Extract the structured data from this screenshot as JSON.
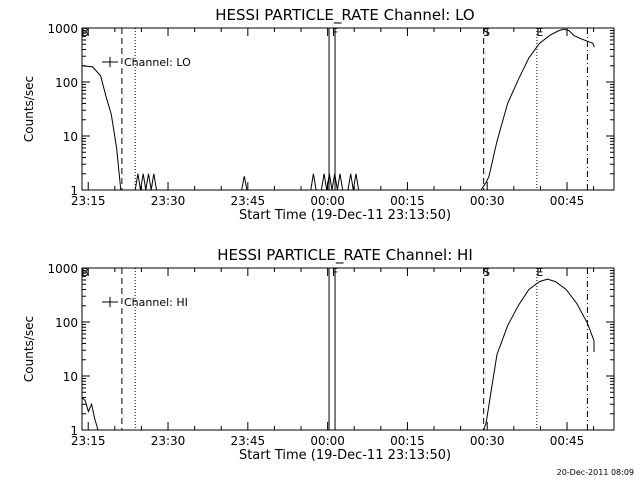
{
  "footer": {
    "timestamp": "20-Dec-2011 08:09"
  },
  "chart_data": [
    {
      "type": "line",
      "title": "HESSI PARTICLE_RATE Channel: LO",
      "xlabel": "Start Time (19-Dec-11 23:13:50)",
      "ylabel": "Counts/sec",
      "yscale": "log",
      "ylim": [
        1,
        1000
      ],
      "xlim_minutes": [
        0,
        96
      ],
      "xtick_labels": [
        "23:15",
        "23:30",
        "23:45",
        "00:00",
        "00:15",
        "00:30",
        "00:45"
      ],
      "xtick_minutes": [
        1.17,
        16.17,
        31.17,
        46.17,
        61.17,
        76.17,
        91.17
      ],
      "ytick_labels": [
        "1",
        "10",
        "100",
        "1000"
      ],
      "ytick_values": [
        1,
        10,
        100,
        1000
      ],
      "legend": {
        "label": "Channel: LO",
        "placement": "top-left"
      },
      "series": [
        {
          "name": "Channel: LO",
          "points": [
            [
              0,
              200
            ],
            [
              2,
              190
            ],
            [
              3.5,
              130
            ],
            [
              4.5,
              55
            ],
            [
              5.5,
              25
            ],
            [
              6.5,
              6
            ],
            [
              7.3,
              1
            ],
            [
              10,
              1
            ],
            [
              10.5,
              2
            ],
            [
              11,
              1
            ],
            [
              11.5,
              2
            ],
            [
              12,
              1
            ],
            [
              12.5,
              2
            ],
            [
              13,
              1
            ],
            [
              13.5,
              2
            ],
            [
              14,
              1
            ],
            [
              30,
              1
            ],
            [
              30.5,
              1.8
            ],
            [
              31,
              1
            ],
            [
              43,
              1
            ],
            [
              43.5,
              2
            ],
            [
              44,
              1
            ],
            [
              45,
              1
            ],
            [
              45.5,
              2
            ],
            [
              46,
              1
            ],
            [
              46.5,
              2
            ],
            [
              47,
              1
            ],
            [
              47.5,
              2
            ],
            [
              48,
              1
            ],
            [
              48.5,
              2
            ],
            [
              49,
              1
            ],
            [
              50,
              1
            ],
            [
              50.5,
              2
            ],
            [
              51,
              1
            ],
            [
              51.5,
              2
            ],
            [
              52,
              1
            ],
            [
              75,
              1
            ],
            [
              76,
              1.4
            ],
            [
              76.5,
              1.8
            ],
            [
              78,
              8
            ],
            [
              80,
              40
            ],
            [
              82,
              110
            ],
            [
              84,
              280
            ],
            [
              86,
              520
            ],
            [
              88,
              740
            ],
            [
              89.5,
              880
            ],
            [
              90.5,
              950
            ],
            [
              91.5,
              900
            ],
            [
              92.5,
              720
            ],
            [
              94,
              620
            ],
            [
              96,
              520
            ],
            [
              98,
              470
            ],
            [
              99.5,
              440
            ]
          ]
        }
      ],
      "markers": [
        {
          "label": "B",
          "minute": 0,
          "style": "solid"
        },
        {
          "label": "",
          "minute": 7.5,
          "style": "dashed"
        },
        {
          "label": "",
          "minute": 10,
          "style": "dotted"
        },
        {
          "label": "F",
          "minute": 47,
          "style": "solid-pair"
        },
        {
          "label": "S",
          "minute": 75.5,
          "style": "dashed"
        },
        {
          "label": "E",
          "minute": 85.5,
          "style": "dotted"
        },
        {
          "label": "",
          "minute": 95,
          "style": "dashdot"
        }
      ]
    },
    {
      "type": "line",
      "title": "HESSI PARTICLE_RATE Channel: HI",
      "xlabel": "Start Time (19-Dec-11 23:13:50)",
      "ylabel": "Counts/sec",
      "yscale": "log",
      "ylim": [
        1,
        1000
      ],
      "xlim_minutes": [
        0,
        96
      ],
      "xtick_labels": [
        "23:15",
        "23:30",
        "23:45",
        "00:00",
        "00:15",
        "00:30",
        "00:45"
      ],
      "xtick_minutes": [
        1.17,
        16.17,
        31.17,
        46.17,
        61.17,
        76.17,
        91.17
      ],
      "ytick_labels": [
        "1",
        "10",
        "100",
        "1000"
      ],
      "ytick_values": [
        1,
        10,
        100,
        1000
      ],
      "legend": {
        "label": "Channel: HI",
        "placement": "top-left"
      },
      "series": [
        {
          "name": "Channel: HI",
          "points": [
            [
              0,
              4
            ],
            [
              0.6,
              3.5
            ],
            [
              1.2,
              2.2
            ],
            [
              1.8,
              3
            ],
            [
              2.4,
              1.6
            ],
            [
              3,
              1
            ],
            [
              75.5,
              1
            ],
            [
              76,
              1.4
            ],
            [
              77,
              6
            ],
            [
              78,
              25
            ],
            [
              80,
              85
            ],
            [
              82,
              200
            ],
            [
              84,
              400
            ],
            [
              86,
              560
            ],
            [
              87.5,
              620
            ],
            [
              89,
              560
            ],
            [
              91,
              400
            ],
            [
              93,
              220
            ],
            [
              95,
              95
            ],
            [
              97,
              45
            ],
            [
              99.5,
              28
            ]
          ]
        }
      ],
      "markers": [
        {
          "label": "B",
          "minute": 0,
          "style": "solid"
        },
        {
          "label": "",
          "minute": 7.5,
          "style": "dashed"
        },
        {
          "label": "",
          "minute": 10,
          "style": "dotted"
        },
        {
          "label": "F",
          "minute": 47,
          "style": "solid-pair"
        },
        {
          "label": "S",
          "minute": 75.5,
          "style": "dashed"
        },
        {
          "label": "E",
          "minute": 85.5,
          "style": "dotted"
        },
        {
          "label": "",
          "minute": 95,
          "style": "dashdot"
        }
      ]
    }
  ]
}
